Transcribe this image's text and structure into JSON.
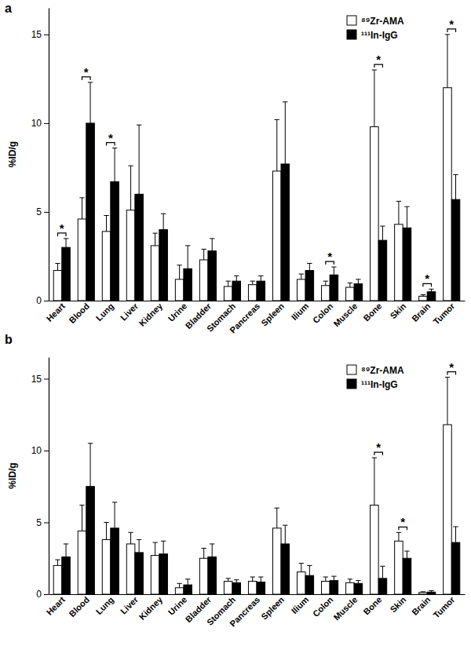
{
  "chart_data": [
    {
      "type": "bar",
      "title": "a",
      "y_label": "%ID/g",
      "categories": [
        "Heart",
        "Blood",
        "Lung",
        "Liver",
        "Kidney",
        "Urine",
        "Bladder",
        "Stomach",
        "Pancreas",
        "Spleen",
        "Ilium",
        "Colon",
        "Muscle",
        "Bone",
        "Skin",
        "Brain",
        "Tumor"
      ],
      "series": [
        {
          "name": "⁸⁹Zr-AMA",
          "color": "#ffffff",
          "values": [
            1.7,
            4.6,
            3.9,
            5.1,
            3.1,
            1.2,
            2.3,
            0.8,
            0.9,
            7.3,
            1.2,
            0.85,
            0.75,
            9.8,
            4.3,
            0.25,
            12.0
          ],
          "errors": [
            0.4,
            1.2,
            0.9,
            2.5,
            0.7,
            0.8,
            0.6,
            0.3,
            0.2,
            2.9,
            0.3,
            0.25,
            0.25,
            3.2,
            1.3,
            0.08,
            3.0
          ]
        },
        {
          "name": "¹¹¹In-IgG",
          "color": "#000000",
          "values": [
            3.0,
            10.0,
            6.7,
            6.0,
            4.0,
            1.8,
            2.8,
            1.1,
            1.1,
            7.7,
            1.7,
            1.45,
            0.95,
            3.4,
            4.1,
            0.5,
            5.7
          ],
          "errors": [
            0.5,
            2.3,
            1.9,
            3.9,
            0.9,
            1.3,
            0.7,
            0.3,
            0.3,
            3.5,
            0.4,
            0.45,
            0.25,
            0.8,
            1.2,
            0.15,
            1.4
          ]
        }
      ],
      "ylim": [
        0,
        16.5
      ],
      "yticks": [
        0,
        5,
        10,
        15
      ],
      "legend": "upper right",
      "annotations": [
        {
          "x": "Heart",
          "text": "*"
        },
        {
          "x": "Blood",
          "text": "*"
        },
        {
          "x": "Lung",
          "text": "*"
        },
        {
          "x": "Colon",
          "text": "*"
        },
        {
          "x": "Bone",
          "text": "*"
        },
        {
          "x": "Brain",
          "text": "*"
        },
        {
          "x": "Tumor",
          "text": "*"
        }
      ]
    },
    {
      "type": "bar",
      "title": "b",
      "y_label": "%ID/g",
      "categories": [
        "Heart",
        "Blood",
        "Lung",
        "Liver",
        "Kidney",
        "Urine",
        "Bladder",
        "Stomach",
        "Pancreas",
        "Spleen",
        "Ilium",
        "Colon",
        "Muscle",
        "Bone",
        "Skin",
        "Brain",
        "Tumor"
      ],
      "series": [
        {
          "name": "⁸⁹Zr-AMA",
          "color": "#ffffff",
          "values": [
            2.0,
            4.4,
            3.8,
            3.5,
            2.7,
            0.45,
            2.5,
            0.9,
            0.9,
            4.6,
            1.55,
            0.9,
            0.8,
            6.2,
            3.7,
            0.12,
            11.8
          ],
          "errors": [
            0.4,
            1.8,
            1.2,
            0.8,
            0.9,
            0.3,
            0.7,
            0.2,
            0.3,
            1.4,
            0.6,
            0.3,
            0.25,
            3.3,
            0.6,
            0.05,
            3.3
          ]
        },
        {
          "name": "¹¹¹In-IgG",
          "color": "#000000",
          "values": [
            2.6,
            7.5,
            4.6,
            2.9,
            2.8,
            0.65,
            2.6,
            0.8,
            0.85,
            3.5,
            1.3,
            0.95,
            0.75,
            1.1,
            2.5,
            0.15,
            3.6
          ],
          "errors": [
            0.9,
            3.0,
            1.8,
            0.9,
            0.9,
            0.4,
            0.9,
            0.2,
            0.35,
            1.3,
            0.7,
            0.3,
            0.2,
            0.85,
            0.5,
            0.1,
            1.1
          ]
        }
      ],
      "ylim": [
        0,
        16.5
      ],
      "yticks": [
        0,
        5,
        10,
        15
      ],
      "legend": "upper right",
      "annotations": [
        {
          "x": "Bone",
          "text": "*"
        },
        {
          "x": "Skin",
          "text": "*"
        },
        {
          "x": "Tumor",
          "text": "*"
        }
      ]
    }
  ]
}
